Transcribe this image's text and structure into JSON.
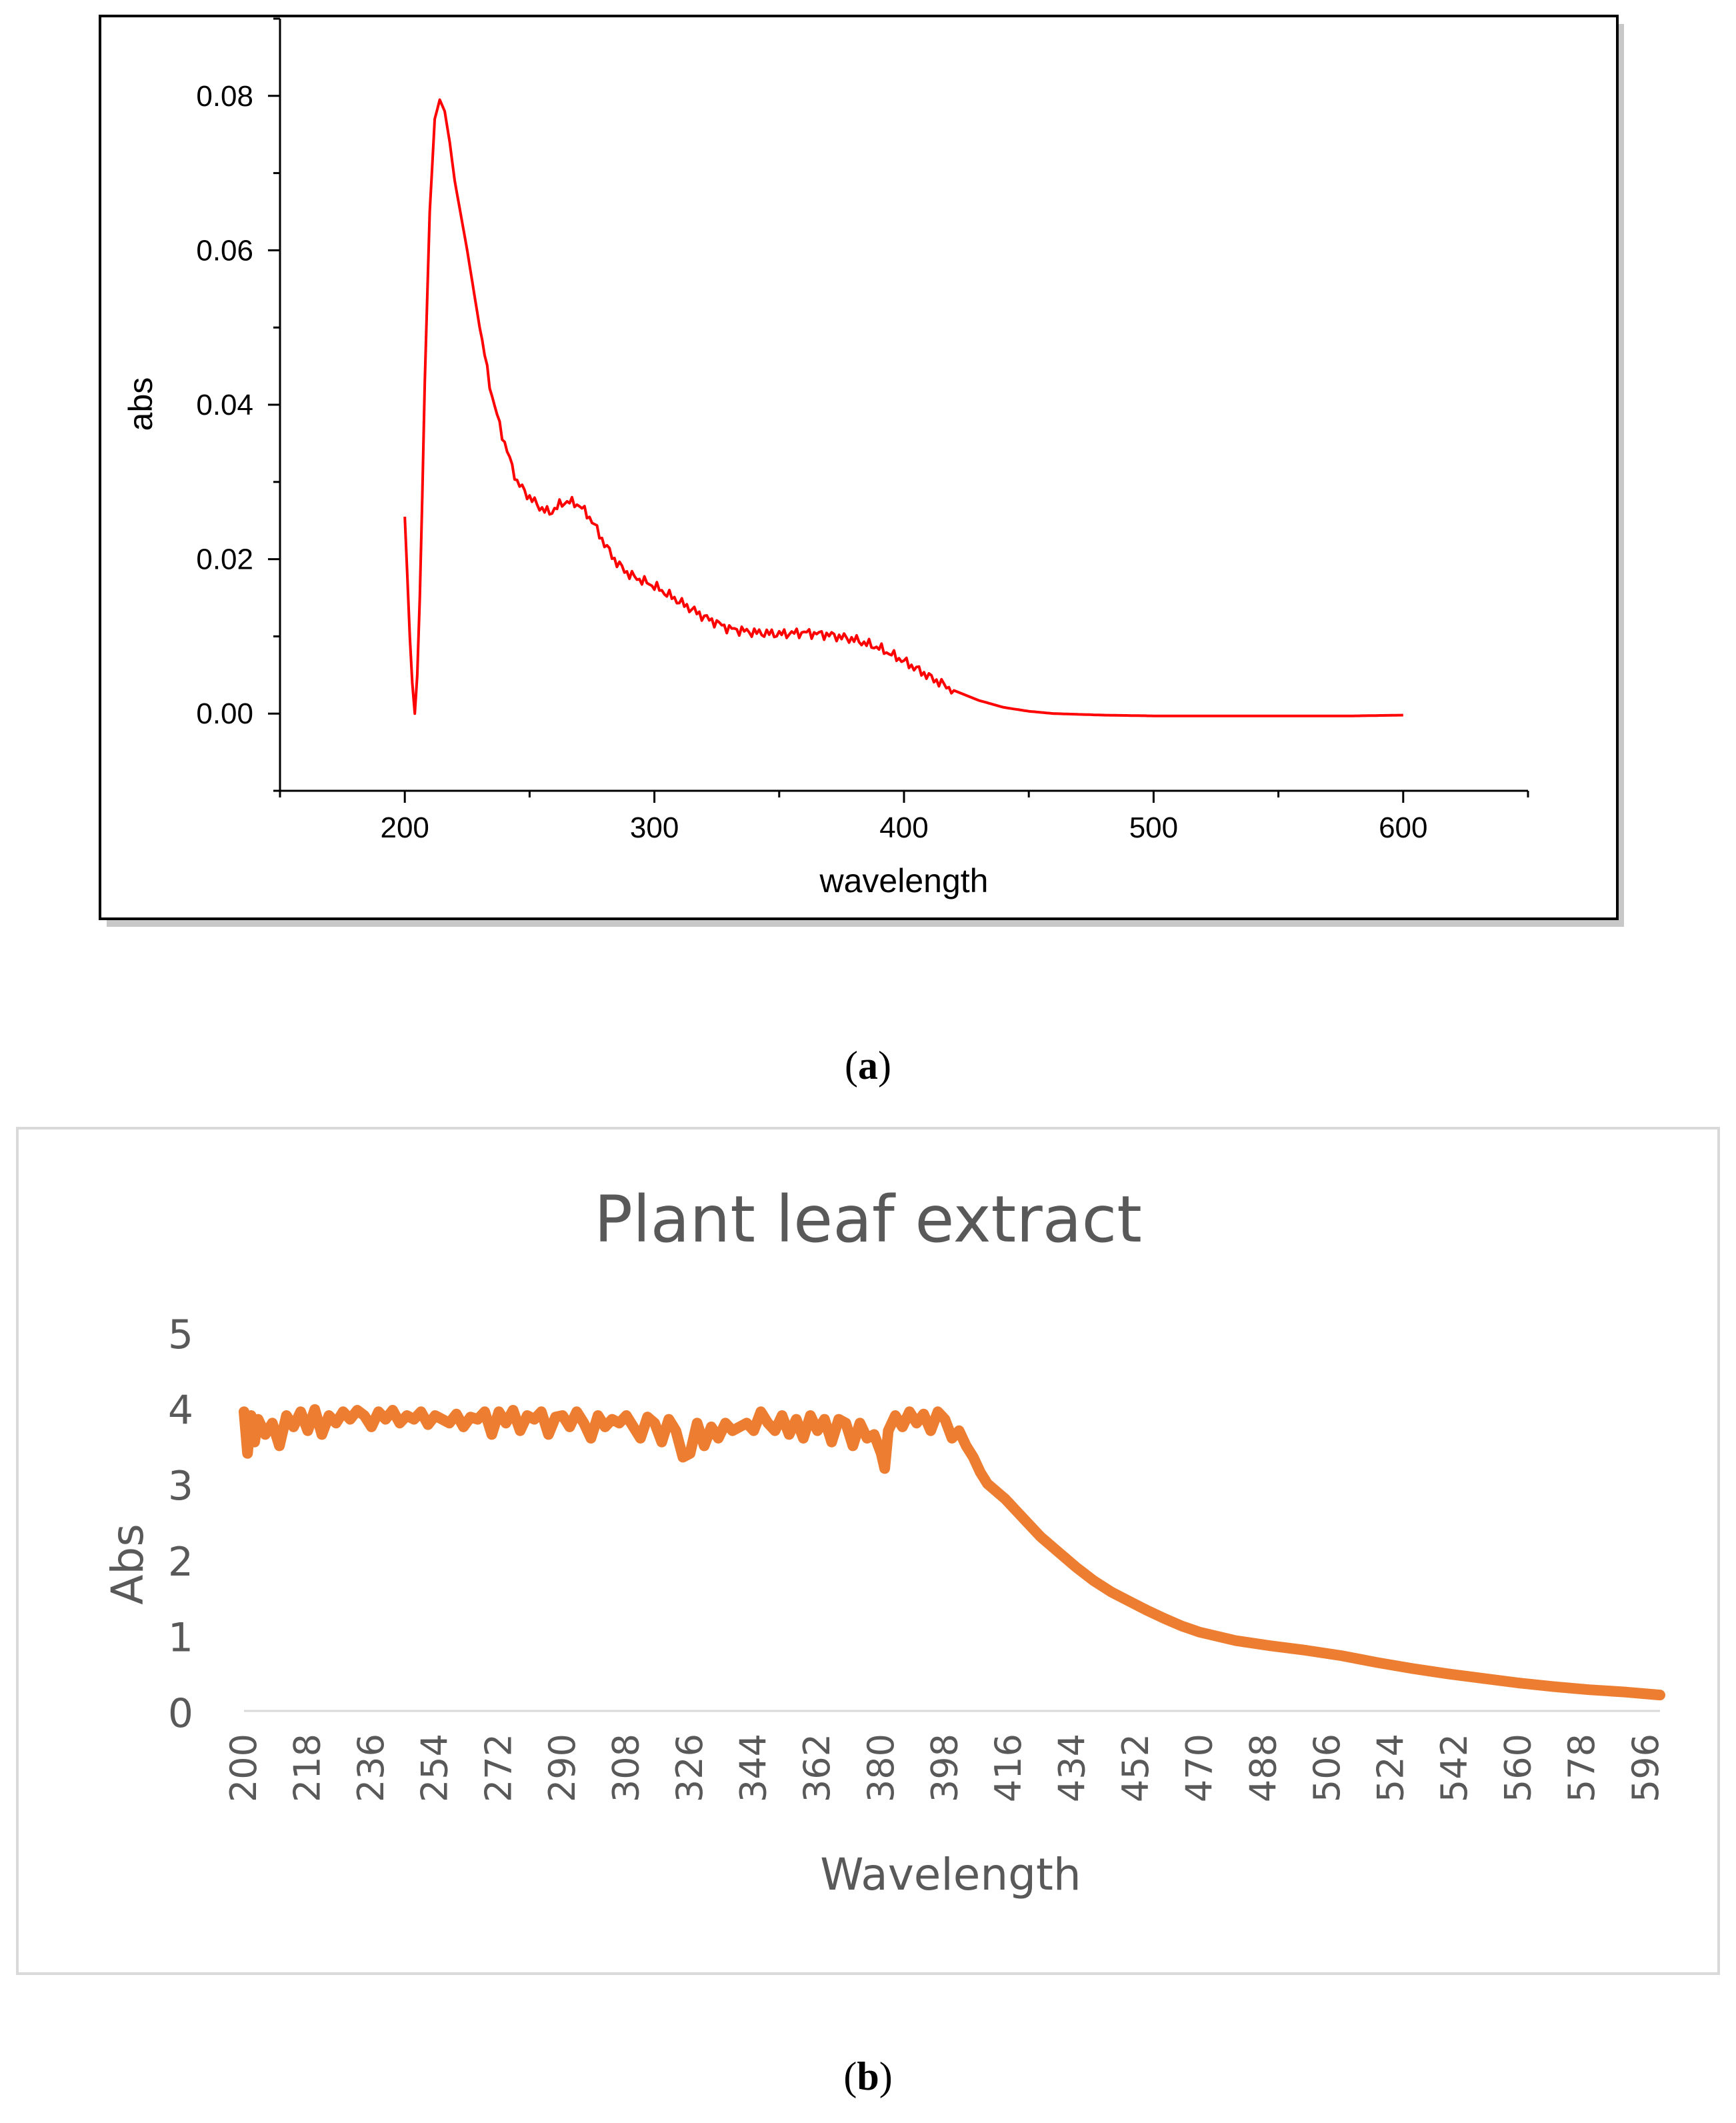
{
  "chart_data": [
    {
      "panel_label": "(a)",
      "panel_letter": "a",
      "type": "line",
      "title": "",
      "xlabel": "wavelength",
      "ylabel": "abs",
      "xlim": [
        150,
        650
      ],
      "ylim": [
        -0.01,
        0.09
      ],
      "xticks": [
        200,
        300,
        400,
        500,
        600
      ],
      "xtick_labels": [
        "200",
        "300",
        "400",
        "500",
        "600"
      ],
      "yticks": [
        0.0,
        0.02,
        0.04,
        0.06,
        0.08
      ],
      "ytick_labels": [
        "0.00",
        "0.02",
        "0.04",
        "0.06",
        "0.08"
      ],
      "grid": false,
      "series": [
        {
          "name": "abs",
          "color": "#ff0000",
          "x": [
            200,
            201,
            202,
            203,
            204,
            205,
            206,
            207,
            208,
            210,
            212,
            214,
            216,
            218,
            220,
            225,
            230,
            235,
            240,
            245,
            250,
            255,
            258,
            262,
            265,
            270,
            275,
            280,
            285,
            290,
            300,
            310,
            320,
            330,
            340,
            350,
            360,
            370,
            380,
            390,
            400,
            410,
            420,
            430,
            440,
            450,
            460,
            480,
            500,
            520,
            540,
            560,
            580,
            600
          ],
          "y": [
            0.0255,
            0.018,
            0.01,
            0.004,
            0.0,
            0.005,
            0.015,
            0.028,
            0.043,
            0.065,
            0.077,
            0.0795,
            0.078,
            0.074,
            0.069,
            0.06,
            0.05,
            0.041,
            0.035,
            0.03,
            0.028,
            0.0265,
            0.026,
            0.027,
            0.0275,
            0.027,
            0.025,
            0.022,
            0.0195,
            0.018,
            0.0165,
            0.0145,
            0.0125,
            0.011,
            0.0105,
            0.0103,
            0.0105,
            0.0102,
            0.0096,
            0.0085,
            0.0068,
            0.0048,
            0.003,
            0.0017,
            0.0008,
            0.0003,
            0.0,
            -0.0002,
            -0.0003,
            -0.0003,
            -0.0003,
            -0.0003,
            -0.0003,
            -0.0002
          ]
        }
      ]
    },
    {
      "panel_label": "(b)",
      "panel_letter": "b",
      "type": "line",
      "title": "Plant leaf extract",
      "xlabel": "Wavelength",
      "ylabel": "Abs",
      "ylim": [
        0,
        5
      ],
      "yticks": [
        0,
        1,
        2,
        3,
        4,
        5
      ],
      "ytick_labels": [
        "0",
        "1",
        "2",
        "3",
        "4",
        "5"
      ],
      "xlim": [
        200,
        600
      ],
      "xticks": [
        200,
        218,
        236,
        254,
        272,
        290,
        308,
        326,
        344,
        362,
        380,
        398,
        416,
        434,
        452,
        470,
        488,
        506,
        524,
        542,
        560,
        578,
        596
      ],
      "xtick_labels": [
        "200",
        "218",
        "236",
        "254",
        "272",
        "290",
        "308",
        "326",
        "344",
        "362",
        "380",
        "398",
        "416",
        "434",
        "452",
        "470",
        "488",
        "506",
        "524",
        "542",
        "560",
        "578",
        "596"
      ],
      "grid": false,
      "series": [
        {
          "name": "Plant leaf extract",
          "color": "#ed7d31",
          "x": [
            200,
            201,
            202,
            203,
            204,
            206,
            208,
            210,
            212,
            214,
            216,
            218,
            220,
            222,
            224,
            226,
            228,
            230,
            232,
            234,
            236,
            238,
            240,
            242,
            244,
            246,
            248,
            250,
            252,
            254,
            256,
            258,
            260,
            262,
            264,
            266,
            268,
            270,
            272,
            274,
            276,
            278,
            280,
            282,
            284,
            286,
            288,
            290,
            292,
            294,
            296,
            298,
            300,
            302,
            304,
            306,
            308,
            310,
            312,
            314,
            316,
            318,
            320,
            322,
            324,
            326,
            328,
            330,
            332,
            334,
            336,
            338,
            340,
            342,
            344,
            346,
            348,
            350,
            352,
            354,
            356,
            358,
            360,
            362,
            364,
            366,
            368,
            370,
            372,
            374,
            376,
            378,
            380,
            381,
            382,
            384,
            386,
            388,
            390,
            392,
            394,
            396,
            398,
            400,
            402,
            404,
            406,
            408,
            410,
            415,
            420,
            425,
            430,
            435,
            440,
            445,
            450,
            455,
            460,
            465,
            470,
            480,
            490,
            500,
            510,
            520,
            530,
            540,
            550,
            560,
            570,
            580,
            590,
            600
          ],
          "y": [
            3.95,
            3.4,
            3.9,
            3.55,
            3.85,
            3.65,
            3.8,
            3.5,
            3.9,
            3.75,
            3.95,
            3.7,
            3.98,
            3.65,
            3.9,
            3.8,
            3.95,
            3.85,
            3.97,
            3.9,
            3.75,
            3.95,
            3.85,
            3.97,
            3.8,
            3.9,
            3.85,
            3.95,
            3.78,
            3.9,
            3.85,
            3.8,
            3.92,
            3.75,
            3.88,
            3.85,
            3.95,
            3.65,
            3.95,
            3.8,
            3.97,
            3.7,
            3.9,
            3.85,
            3.95,
            3.65,
            3.88,
            3.9,
            3.75,
            3.95,
            3.8,
            3.6,
            3.9,
            3.75,
            3.85,
            3.8,
            3.9,
            3.75,
            3.6,
            3.88,
            3.8,
            3.55,
            3.85,
            3.7,
            3.35,
            3.4,
            3.8,
            3.5,
            3.75,
            3.6,
            3.8,
            3.7,
            3.75,
            3.8,
            3.7,
            3.95,
            3.8,
            3.7,
            3.9,
            3.65,
            3.85,
            3.6,
            3.9,
            3.7,
            3.85,
            3.55,
            3.85,
            3.8,
            3.5,
            3.8,
            3.6,
            3.65,
            3.4,
            3.2,
            3.7,
            3.9,
            3.75,
            3.95,
            3.8,
            3.92,
            3.7,
            3.95,
            3.85,
            3.6,
            3.7,
            3.5,
            3.35,
            3.15,
            3.0,
            2.8,
            2.55,
            2.3,
            2.1,
            1.9,
            1.72,
            1.57,
            1.45,
            1.33,
            1.22,
            1.12,
            1.04,
            0.93,
            0.86,
            0.8,
            0.73,
            0.64,
            0.56,
            0.49,
            0.43,
            0.37,
            0.32,
            0.28,
            0.25,
            0.21
          ]
        }
      ]
    }
  ]
}
